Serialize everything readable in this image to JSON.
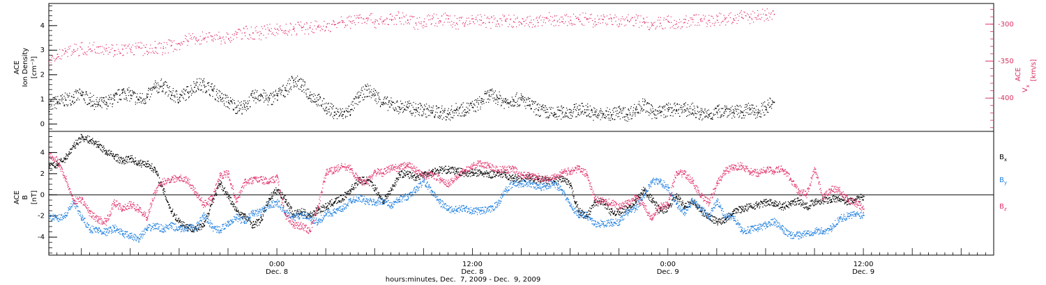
{
  "colors": {
    "black": "#000000",
    "pink": "#e2336a",
    "blue": "#1f7fe0",
    "axis_pink": "#d62f5f"
  },
  "chart_data": [
    {
      "panel": "top",
      "type": "scatter",
      "left_axis": {
        "title_lines": [
          "ACE",
          "Ion Density",
          "[cm⁻³]"
        ],
        "ylim": [
          -0.3,
          4.9
        ],
        "ticks": [
          0,
          1,
          2,
          3,
          4
        ]
      },
      "right_axis": {
        "title_lines": [
          "V",
          "x",
          "ACE",
          "[km/s]"
        ],
        "ylim": [
          -445,
          -272
        ],
        "ticks": [
          -300,
          -350,
          -400
        ]
      },
      "series": [
        {
          "name": "Ion Density",
          "axis": "left",
          "color_key": "black",
          "x": [
            -8,
            -6,
            -4,
            -2,
            0,
            2,
            4,
            6,
            8,
            10,
            12,
            14,
            16,
            18,
            20,
            22,
            24,
            26,
            28,
            30,
            32,
            34,
            36,
            38,
            40,
            42,
            44,
            46,
            48,
            50,
            52,
            54,
            56,
            58,
            60,
            62,
            64,
            66,
            68,
            70,
            72,
            74,
            76,
            78,
            80,
            82,
            84,
            86,
            88,
            90,
            92,
            94,
            96,
            98,
            100,
            102,
            104,
            106,
            108,
            110,
            112,
            114,
            116,
            118,
            120,
            122,
            124,
            126,
            128,
            130,
            132,
            134,
            136,
            138,
            140,
            142,
            144,
            146,
            148,
            150,
            152,
            154,
            156,
            158,
            160,
            162,
            164,
            166,
            168,
            170
          ],
          "y": [
            0.8,
            0.9,
            1.0,
            1.1,
            1.2,
            1.0,
            0.8,
            0.9,
            1.0,
            1.3,
            1.2,
            1.0,
            1.1,
            1.5,
            1.6,
            1.2,
            1.1,
            1.3,
            1.6,
            1.6,
            1.4,
            1.1,
            0.9,
            0.7,
            0.7,
            1.1,
            1.2,
            1.0,
            1.2,
            1.4,
            1.8,
            1.6,
            1.2,
            1.0,
            0.7,
            0.5,
            0.4,
            0.6,
            1.1,
            1.4,
            1.2,
            0.9,
            0.8,
            0.7,
            0.7,
            0.6,
            0.6,
            0.5,
            0.5,
            0.4,
            0.6,
            0.6,
            0.7,
            0.9,
            1.2,
            1.1,
            0.9,
            1.0,
            1.0,
            0.8,
            0.6,
            0.5,
            0.4,
            0.5,
            0.5,
            0.6,
            0.6,
            0.4,
            0.4,
            0.4,
            0.5,
            0.4,
            0.6,
            0.8,
            0.5,
            0.5,
            0.6,
            0.6,
            0.6,
            0.6,
            0.4,
            0.4,
            0.5,
            0.6,
            0.5,
            0.5,
            0.6,
            0.5,
            0.7,
            0.9
          ]
        },
        {
          "name": "Vx",
          "axis": "right",
          "color_key": "pink",
          "x": [
            -8,
            -6,
            -4,
            -2,
            0,
            2,
            4,
            6,
            8,
            10,
            12,
            14,
            16,
            18,
            20,
            22,
            24,
            26,
            28,
            30,
            32,
            34,
            36,
            38,
            40,
            42,
            44,
            46,
            48,
            50,
            52,
            54,
            56,
            58,
            60,
            62,
            64,
            66,
            68,
            70,
            72,
            74,
            76,
            78,
            80,
            82,
            84,
            86,
            88,
            90,
            92,
            94,
            96,
            98,
            100,
            102,
            104,
            106,
            108,
            110,
            112,
            114,
            116,
            118,
            120,
            122,
            124,
            126,
            128,
            130,
            132,
            134,
            136,
            138,
            140,
            142,
            144,
            146,
            148,
            150,
            152,
            154,
            156,
            158,
            160,
            162,
            164,
            166,
            168,
            170
          ],
          "y": [
            -355,
            -340,
            -336,
            -334,
            -333,
            -333,
            -330,
            -332,
            -335,
            -333,
            -334,
            -331,
            -336,
            -331,
            -332,
            -328,
            -326,
            -322,
            -318,
            -318,
            -316,
            -318,
            -319,
            -313,
            -311,
            -311,
            -312,
            -308,
            -306,
            -308,
            -306,
            -304,
            -304,
            -303,
            -303,
            -300,
            -297,
            -296,
            -291,
            -291,
            -296,
            -295,
            -293,
            -291,
            -294,
            -298,
            -296,
            -292,
            -295,
            -292,
            -298,
            -299,
            -292,
            -294,
            -297,
            -295,
            -295,
            -296,
            -299,
            -297,
            -297,
            -291,
            -294,
            -296,
            -294,
            -293,
            -293,
            -296,
            -293,
            -292,
            -299,
            -294,
            -294,
            -296,
            -299,
            -298,
            -296,
            -299,
            -297,
            -293,
            -295,
            -294,
            -294,
            -292,
            -292,
            -290,
            -290,
            -288,
            -287,
            -286
          ]
        }
      ]
    },
    {
      "panel": "bottom",
      "type": "scatter",
      "left_axis": {
        "title_lines": [
          "ACE",
          "B",
          "[nT]"
        ],
        "ylim": [
          -5.7,
          6.0
        ],
        "ticks": [
          -4,
          -2,
          0,
          2,
          4
        ]
      },
      "zero_line": true,
      "x_axis": {
        "xlim": [
          -8,
          224
        ],
        "tick_labels": [
          {
            "x": 48,
            "time": "0:00",
            "date": "Dec. 8"
          },
          {
            "x": 96,
            "time": "12:00",
            "date": "Dec. 8"
          },
          {
            "x": 144,
            "time": "0:00",
            "date": "Dec. 9"
          },
          {
            "x": 192,
            "time": "12:00",
            "date": "Dec. 9"
          }
        ],
        "label": "hours:minutes, Dec.  7, 2009 - Dec.  9, 2009"
      },
      "legend": [
        {
          "label": "B",
          "sub": "x",
          "color_key": "black"
        },
        {
          "label": "B",
          "sub": "y",
          "color_key": "blue"
        },
        {
          "label": "B",
          "sub": "z",
          "color_key": "pink"
        }
      ],
      "legend_position": "right",
      "series": [
        {
          "name": "Bx",
          "color_key": "black",
          "x": [
            -8,
            -6,
            -4,
            -2,
            0,
            2,
            4,
            6,
            8,
            10,
            12,
            14,
            16,
            18,
            20,
            22,
            24,
            26,
            28,
            30,
            32,
            34,
            36,
            38,
            40,
            42,
            44,
            46,
            48,
            50,
            52,
            54,
            56,
            58,
            60,
            62,
            64,
            66,
            68,
            70,
            72,
            74,
            76,
            78,
            80,
            82,
            84,
            86,
            88,
            90,
            92,
            94,
            96,
            98,
            100,
            102,
            104,
            106,
            108,
            110,
            112,
            114,
            116,
            118,
            120,
            122,
            124,
            126,
            128,
            130,
            132,
            134,
            136,
            138,
            140,
            142,
            144,
            146,
            148,
            150,
            152,
            154,
            156,
            158,
            160,
            162,
            164,
            166,
            168,
            170,
            172,
            174,
            176,
            178,
            180,
            182,
            184,
            186,
            188,
            190,
            192
          ],
          "y": [
            2.6,
            2.9,
            3.5,
            4.6,
            5.5,
            5.2,
            4.8,
            4.1,
            3.7,
            3.2,
            3.5,
            3.0,
            3.0,
            2.4,
            0.5,
            -1.5,
            -2.5,
            -3.0,
            -3.2,
            -2.9,
            -0.6,
            1.1,
            -0.1,
            -1.5,
            -2.0,
            -2.8,
            -2.4,
            -0.3,
            0.5,
            -0.4,
            -1.8,
            -1.6,
            -1.9,
            -1.4,
            -1.1,
            -0.6,
            -0.3,
            0.5,
            1.4,
            1.4,
            0.7,
            -0.6,
            0.5,
            2.0,
            2.0,
            1.7,
            2.0,
            2.2,
            2.4,
            2.4,
            2.3,
            2.1,
            2.1,
            2.1,
            1.9,
            2.1,
            1.9,
            1.6,
            1.6,
            1.6,
            1.5,
            1.4,
            1.3,
            1.6,
            0.9,
            -1.5,
            -2.0,
            -0.7,
            -0.6,
            -1.6,
            -1.6,
            -1.2,
            -0.6,
            0.5,
            -0.4,
            -1.5,
            -1.2,
            -0.1,
            -1.0,
            -0.6,
            -1.5,
            -2.0,
            -2.5,
            -2.3,
            -1.5,
            -1.3,
            -1.1,
            -0.9,
            -0.7,
            -0.7,
            -1.1,
            -0.8,
            -0.5,
            -1.1,
            -0.6,
            -0.5,
            -0.4,
            -0.3,
            -0.6,
            -0.5,
            -0.1
          ]
        },
        {
          "name": "By",
          "color_key": "blue",
          "x": [
            -8,
            -6,
            -4,
            -2,
            0,
            2,
            4,
            6,
            8,
            10,
            12,
            14,
            16,
            18,
            20,
            22,
            24,
            26,
            28,
            30,
            32,
            34,
            36,
            38,
            40,
            42,
            44,
            46,
            48,
            50,
            52,
            54,
            56,
            58,
            60,
            62,
            64,
            66,
            68,
            70,
            72,
            74,
            76,
            78,
            80,
            82,
            84,
            86,
            88,
            90,
            92,
            94,
            96,
            98,
            100,
            102,
            104,
            106,
            108,
            110,
            112,
            114,
            116,
            118,
            120,
            122,
            124,
            126,
            128,
            130,
            132,
            134,
            136,
            138,
            140,
            142,
            144,
            146,
            148,
            150,
            152,
            154,
            156,
            158,
            160,
            162,
            164,
            166,
            168,
            170,
            172,
            174,
            176,
            178,
            180,
            182,
            184,
            186,
            188,
            190,
            192
          ],
          "y": [
            -2.0,
            -2.2,
            -1.9,
            -0.7,
            -2.1,
            -3.2,
            -3.3,
            -3.5,
            -3.1,
            -3.6,
            -3.9,
            -4.1,
            -3.2,
            -2.9,
            -3.2,
            -2.9,
            -3.2,
            -3.1,
            -3.1,
            -1.9,
            -3.0,
            -3.3,
            -2.6,
            -2.1,
            -2.5,
            -1.7,
            -1.6,
            -0.9,
            -0.7,
            -1.6,
            -2.1,
            -1.9,
            -2.1,
            -2.6,
            -1.7,
            -1.6,
            -1.3,
            -0.5,
            -0.2,
            -0.6,
            -0.7,
            -0.5,
            -1.0,
            -0.4,
            -0.1,
            0.5,
            1.4,
            0.3,
            -0.7,
            -1.3,
            -1.4,
            -1.2,
            -1.5,
            -1.5,
            -1.4,
            -0.9,
            0.4,
            1.1,
            1.1,
            1.2,
            0.7,
            0.9,
            1.1,
            0.5,
            -1.0,
            -1.8,
            -1.9,
            -2.7,
            -2.7,
            -2.6,
            -2.5,
            -1.6,
            -1.3,
            0.0,
            1.3,
            1.3,
            0.7,
            -0.8,
            -1.6,
            -0.5,
            -1.3,
            -2.0,
            -0.6,
            -2.0,
            -2.0,
            -3.3,
            -3.3,
            -3.1,
            -2.8,
            -2.5,
            -3.2,
            -3.8,
            -3.8,
            -3.6,
            -3.4,
            -3.4,
            -3.2,
            -2.2,
            -2.0,
            -1.8,
            -1.9
          ]
        },
        {
          "name": "Bz",
          "color_key": "pink",
          "x": [
            -8,
            -6,
            -4,
            -2,
            0,
            2,
            4,
            6,
            8,
            10,
            12,
            14,
            16,
            18,
            20,
            22,
            24,
            26,
            28,
            30,
            32,
            34,
            36,
            38,
            40,
            42,
            44,
            46,
            48,
            50,
            52,
            54,
            56,
            58,
            60,
            62,
            64,
            66,
            68,
            70,
            72,
            74,
            76,
            78,
            80,
            82,
            84,
            86,
            88,
            90,
            92,
            94,
            96,
            98,
            100,
            102,
            104,
            106,
            108,
            110,
            112,
            114,
            116,
            118,
            120,
            122,
            124,
            126,
            128,
            130,
            132,
            134,
            136,
            138,
            140,
            142,
            144,
            146,
            148,
            150,
            152,
            154,
            156,
            158,
            160,
            162,
            164,
            166,
            168,
            170,
            172,
            174,
            176,
            178,
            180,
            182,
            184,
            186,
            188,
            190,
            192
          ],
          "y": [
            3.9,
            3.3,
            1.6,
            -0.5,
            -0.4,
            -1.7,
            -2.3,
            -2.5,
            -0.7,
            -1.3,
            -0.9,
            -1.3,
            -2.1,
            0.3,
            1.3,
            1.5,
            1.7,
            1.4,
            0.3,
            -0.9,
            -0.3,
            1.9,
            2.0,
            -0.6,
            1.2,
            1.4,
            1.5,
            1.2,
            1.7,
            -1.9,
            -2.8,
            -2.9,
            -3.4,
            -1.1,
            2.1,
            2.4,
            2.7,
            2.5,
            1.4,
            1.2,
            2.2,
            2.1,
            2.6,
            2.6,
            2.9,
            2.4,
            1.8,
            2.0,
            1.5,
            1.1,
            1.7,
            2.3,
            2.8,
            3.0,
            2.8,
            2.4,
            2.4,
            2.5,
            1.9,
            1.8,
            1.7,
            1.5,
            1.8,
            2.1,
            2.3,
            2.5,
            2.0,
            -0.4,
            -0.6,
            -0.7,
            -1.1,
            -0.8,
            -0.2,
            -1.0,
            -2.2,
            -1.1,
            -0.8,
            2.2,
            2.0,
            1.3,
            -0.1,
            -0.7,
            1.1,
            2.3,
            2.6,
            2.8,
            2.2,
            2.1,
            2.4,
            2.3,
            2.5,
            1.6,
            0.3,
            0.1,
            2.5,
            -0.3,
            0.6,
            0.5,
            -0.4,
            -0.7,
            -1.3
          ]
        }
      ]
    }
  ]
}
